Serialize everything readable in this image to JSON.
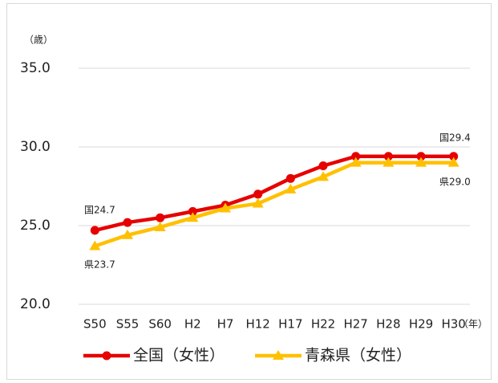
{
  "chart_data": {
    "type": "line",
    "y_unit": "（歳）",
    "x_unit": "（年）",
    "categories": [
      "S50",
      "S55",
      "S60",
      "H2",
      "H7",
      "H12",
      "H17",
      "H22",
      "H27",
      "H28",
      "H29",
      "H30"
    ],
    "series": [
      {
        "name": "全国（女性）",
        "color": "#e60000",
        "marker": "circle",
        "values": [
          24.7,
          25.2,
          25.5,
          25.9,
          26.3,
          27.0,
          28.0,
          28.8,
          29.4,
          29.4,
          29.4,
          29.4
        ]
      },
      {
        "name": "青森県（女性）",
        "color": "#ffc000",
        "marker": "triangle",
        "values": [
          23.7,
          24.4,
          24.9,
          25.5,
          26.1,
          26.4,
          27.3,
          28.1,
          29.0,
          29.0,
          29.0,
          29.0
        ]
      }
    ],
    "annotations": [
      "国24.7",
      "県23.7",
      "国29.4",
      "県29.0"
    ],
    "ylim": [
      20,
      35
    ],
    "yticks": [
      {
        "value": 20,
        "label": "20.0"
      },
      {
        "value": 25,
        "label": "25.0"
      },
      {
        "value": 30,
        "label": "30.0"
      },
      {
        "value": 35,
        "label": "35.0"
      }
    ],
    "grid": true,
    "legend": "bottom"
  }
}
